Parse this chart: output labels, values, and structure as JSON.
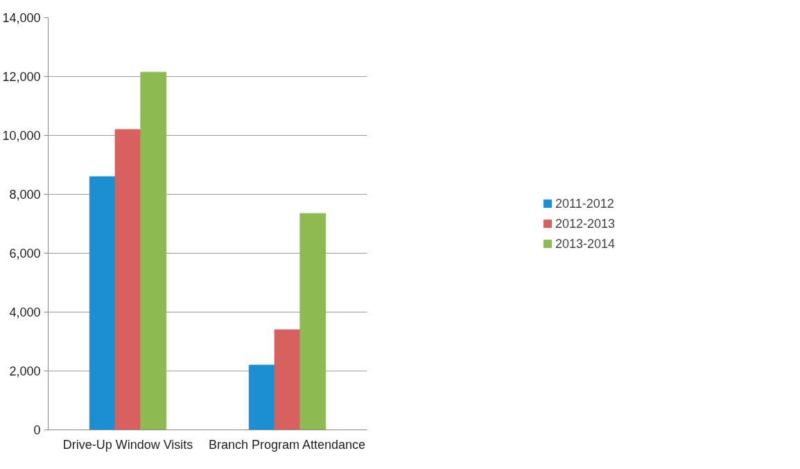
{
  "chart_data": {
    "type": "bar",
    "categories": [
      "Drive-Up Window Visits",
      "Branch Program Attendance"
    ],
    "series": [
      {
        "name": "2011-2012",
        "color": "#1b8fd2",
        "values": [
          8600,
          2200
        ]
      },
      {
        "name": "2012-2013",
        "color": "#d8605e",
        "values": [
          10200,
          3400
        ]
      },
      {
        "name": "2013-2014",
        "color": "#8dbb52",
        "values": [
          12150,
          7350
        ]
      }
    ],
    "ylim": [
      0,
      14000
    ],
    "yticks": [
      {
        "value": 0,
        "label": "0"
      },
      {
        "value": 2000,
        "label": "2,000"
      },
      {
        "value": 4000,
        "label": "4,000"
      },
      {
        "value": 6000,
        "label": "6,000"
      },
      {
        "value": 8000,
        "label": "8,000"
      },
      {
        "value": 10000,
        "label": "10,000"
      },
      {
        "value": 12000,
        "label": "12,000"
      },
      {
        "value": 14000,
        "label": "14,000"
      }
    ],
    "grid": "y",
    "legend": "right"
  }
}
